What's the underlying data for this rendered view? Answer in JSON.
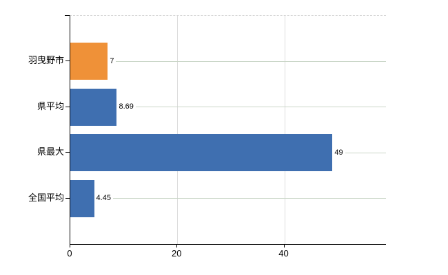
{
  "chart_data": {
    "type": "bar",
    "orientation": "horizontal",
    "title": "",
    "categories": [
      "羽曳野市",
      "県平均",
      "県最大",
      "全国平均"
    ],
    "values": [
      7,
      8.69,
      49,
      4.45
    ],
    "value_labels": [
      "7",
      "8.69",
      "49",
      "4.45"
    ],
    "bar_colors": [
      "#ef9138",
      "#3f6fb0",
      "#3f6fb0",
      "#3f6fb0"
    ],
    "x_tick_labels": [
      "0",
      "20",
      "40"
    ],
    "x_tick_values": [
      0,
      20,
      40
    ],
    "xlim": [
      0,
      59
    ],
    "ylabel": "",
    "xlabel": "",
    "legend": null,
    "grid": {
      "vertical_gridlines_at": [
        20,
        40
      ],
      "row_leader_lines": true,
      "plot_top_border": "dashed"
    }
  },
  "colors": {
    "highlight_bar": "#ef9138",
    "default_bar": "#3f6fb0",
    "axis": "#000000",
    "vertical_gridline": "#dcdcdc",
    "leader_line": "#c9d5c6",
    "plot_top_border": "#d5d5d5",
    "background": "#ffffff",
    "text": "#000000"
  }
}
